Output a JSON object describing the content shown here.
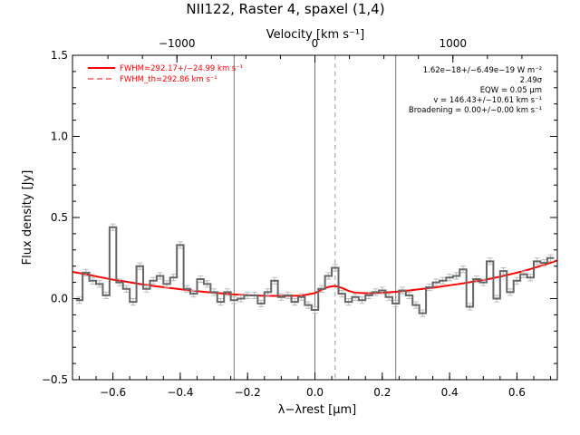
{
  "chart_data": {
    "type": "line",
    "title": "NII122, Raster 4, spaxel (1,4)",
    "xlabel": "λ−λrest [μm]",
    "ylabel": "Flux density [Jy]",
    "top_axis_label": "Velocity [km s⁻¹]",
    "xlim": [
      -0.72,
      0.72
    ],
    "ylim": [
      -0.5,
      1.5
    ],
    "x_ticks": [
      -0.6,
      -0.4,
      -0.2,
      0.0,
      0.2,
      0.4,
      0.6
    ],
    "x_tick_labels": [
      "−0.6",
      "−0.4",
      "−0.2",
      "0.0",
      "0.2",
      "0.4",
      "0.6"
    ],
    "y_ticks": [
      -0.5,
      0.0,
      0.5,
      1.0,
      1.5
    ],
    "y_tick_labels": [
      "−0.5",
      "0.0",
      "0.5",
      "1.0",
      "1.5"
    ],
    "top_ticks_kms": [
      -1000,
      0,
      1000
    ],
    "top_tick_labels": [
      "−1000",
      "0",
      "1000"
    ],
    "kms_per_micron": 2440,
    "vertical_lines": {
      "solid": [
        -0.24,
        0.0,
        0.24
      ],
      "dashed": [
        0.06
      ]
    },
    "legend": {
      "placement": "top-left",
      "entries": [
        {
          "label": "FWHM=292.17+/−24.99 km s⁻¹",
          "style": "solid",
          "color": "#ff0000"
        },
        {
          "label": "FWHM_th=292.86 km s⁻¹",
          "style": "dashed",
          "color": "#ff0000"
        }
      ]
    },
    "annotations": [
      "1.62e−18+/−6.49e−19 W m⁻²",
      "2.49σ",
      "EQW = 0.05 μm",
      "v = 146.43+/−10.61 km s⁻¹",
      "Broadening = 0.00+/−0.00 km s⁻¹"
    ],
    "series": [
      {
        "name": "data",
        "style": "steps",
        "color": "#555555",
        "x": [
          -0.7,
          -0.68,
          -0.66,
          -0.64,
          -0.62,
          -0.6,
          -0.58,
          -0.56,
          -0.54,
          -0.52,
          -0.5,
          -0.48,
          -0.46,
          -0.44,
          -0.42,
          -0.4,
          -0.38,
          -0.36,
          -0.34,
          -0.32,
          -0.3,
          -0.28,
          -0.26,
          -0.24,
          -0.22,
          -0.2,
          -0.18,
          -0.16,
          -0.14,
          -0.12,
          -0.1,
          -0.08,
          -0.06,
          -0.04,
          -0.02,
          0.0,
          0.02,
          0.04,
          0.06,
          0.08,
          0.1,
          0.12,
          0.14,
          0.16,
          0.18,
          0.2,
          0.22,
          0.24,
          0.26,
          0.28,
          0.3,
          0.32,
          0.34,
          0.36,
          0.38,
          0.4,
          0.42,
          0.44,
          0.46,
          0.48,
          0.5,
          0.52,
          0.54,
          0.56,
          0.58,
          0.6,
          0.62,
          0.64,
          0.66,
          0.68,
          0.7
        ],
        "y": [
          -0.01,
          0.16,
          0.11,
          0.09,
          0.02,
          0.44,
          0.1,
          0.06,
          -0.02,
          0.2,
          0.06,
          0.11,
          0.14,
          0.09,
          0.13,
          0.33,
          0.06,
          0.03,
          0.12,
          0.09,
          0.04,
          -0.02,
          0.04,
          -0.01,
          0.0,
          0.02,
          0.02,
          -0.03,
          0.04,
          0.11,
          0.01,
          0.02,
          -0.02,
          0.01,
          -0.04,
          -0.07,
          0.06,
          0.14,
          0.19,
          0.03,
          -0.02,
          0.01,
          -0.01,
          0.02,
          0.04,
          0.05,
          0.01,
          -0.03,
          0.05,
          0.02,
          -0.04,
          -0.09,
          0.07,
          0.1,
          0.11,
          0.13,
          0.14,
          0.18,
          -0.05,
          0.12,
          0.1,
          0.23,
          0.0,
          0.17,
          0.04,
          0.11,
          0.15,
          0.13,
          0.23,
          0.22,
          0.25
        ],
        "yerr": 0.02
      },
      {
        "name": "fit",
        "style": "line",
        "color": "#ff0000",
        "x": [
          -0.72,
          -0.68,
          -0.64,
          -0.6,
          -0.56,
          -0.52,
          -0.48,
          -0.44,
          -0.4,
          -0.36,
          -0.32,
          -0.28,
          -0.24,
          -0.2,
          -0.16,
          -0.12,
          -0.08,
          -0.04,
          0.0,
          0.02,
          0.04,
          0.06,
          0.08,
          0.1,
          0.12,
          0.16,
          0.2,
          0.24,
          0.28,
          0.32,
          0.36,
          0.4,
          0.44,
          0.48,
          0.52,
          0.56,
          0.6,
          0.64,
          0.68,
          0.72
        ],
        "y": [
          0.165,
          0.15,
          0.133,
          0.117,
          0.104,
          0.09,
          0.078,
          0.068,
          0.058,
          0.048,
          0.04,
          0.033,
          0.026,
          0.021,
          0.018,
          0.017,
          0.017,
          0.018,
          0.034,
          0.054,
          0.072,
          0.078,
          0.066,
          0.048,
          0.036,
          0.033,
          0.036,
          0.042,
          0.05,
          0.06,
          0.07,
          0.082,
          0.094,
          0.108,
          0.122,
          0.14,
          0.16,
          0.182,
          0.208,
          0.235
        ]
      }
    ]
  }
}
